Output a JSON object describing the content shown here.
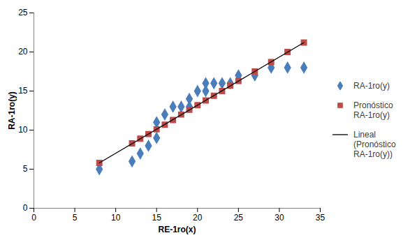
{
  "chart_data": {
    "type": "scatter",
    "x_label": "RE-1ro(x)",
    "y_label": "RA-1ro(y)",
    "xlim": [
      0,
      35
    ],
    "xticks": [
      0,
      5,
      10,
      15,
      20,
      25,
      30,
      35
    ],
    "ylim": [
      0,
      25
    ],
    "yticks": [
      0,
      5,
      10,
      15,
      20,
      25
    ],
    "grid": false,
    "legend": "right",
    "series": [
      {
        "name": "RA-1ro(y)",
        "type": "scatter",
        "marker": "diamond",
        "color": "#4a7ebb",
        "x": [
          8,
          12,
          13,
          14,
          15,
          15,
          16,
          17,
          18,
          19,
          19,
          20,
          21,
          21,
          22,
          23,
          24,
          25,
          27,
          29,
          31,
          33
        ],
        "values": [
          5,
          6,
          7,
          8,
          9,
          11,
          12,
          13,
          13,
          14,
          13,
          15,
          16,
          15,
          16,
          16,
          16,
          17,
          17,
          18,
          18,
          18
        ]
      },
      {
        "name": "Pronóstico RA-1ro(y)",
        "type": "scatter",
        "marker": "square",
        "color": "#be4b48",
        "x": [
          8,
          12,
          13,
          14,
          15,
          16,
          17,
          18,
          19,
          20,
          21,
          22,
          23,
          24,
          25,
          27,
          29,
          31,
          33
        ],
        "values": [
          5.8,
          8.3,
          8.9,
          9.5,
          10.1,
          10.7,
          11.3,
          12,
          12.6,
          13.2,
          13.8,
          14.4,
          15,
          15.7,
          16.3,
          17.5,
          18.7,
          20,
          21.2
        ]
      },
      {
        "name": "Lineal (Pronóstico RA-1ro(y))",
        "type": "line",
        "line_style": "solid",
        "color": "#000000",
        "x": [
          8,
          33
        ],
        "values": [
          5.8,
          21.2
        ]
      }
    ]
  }
}
